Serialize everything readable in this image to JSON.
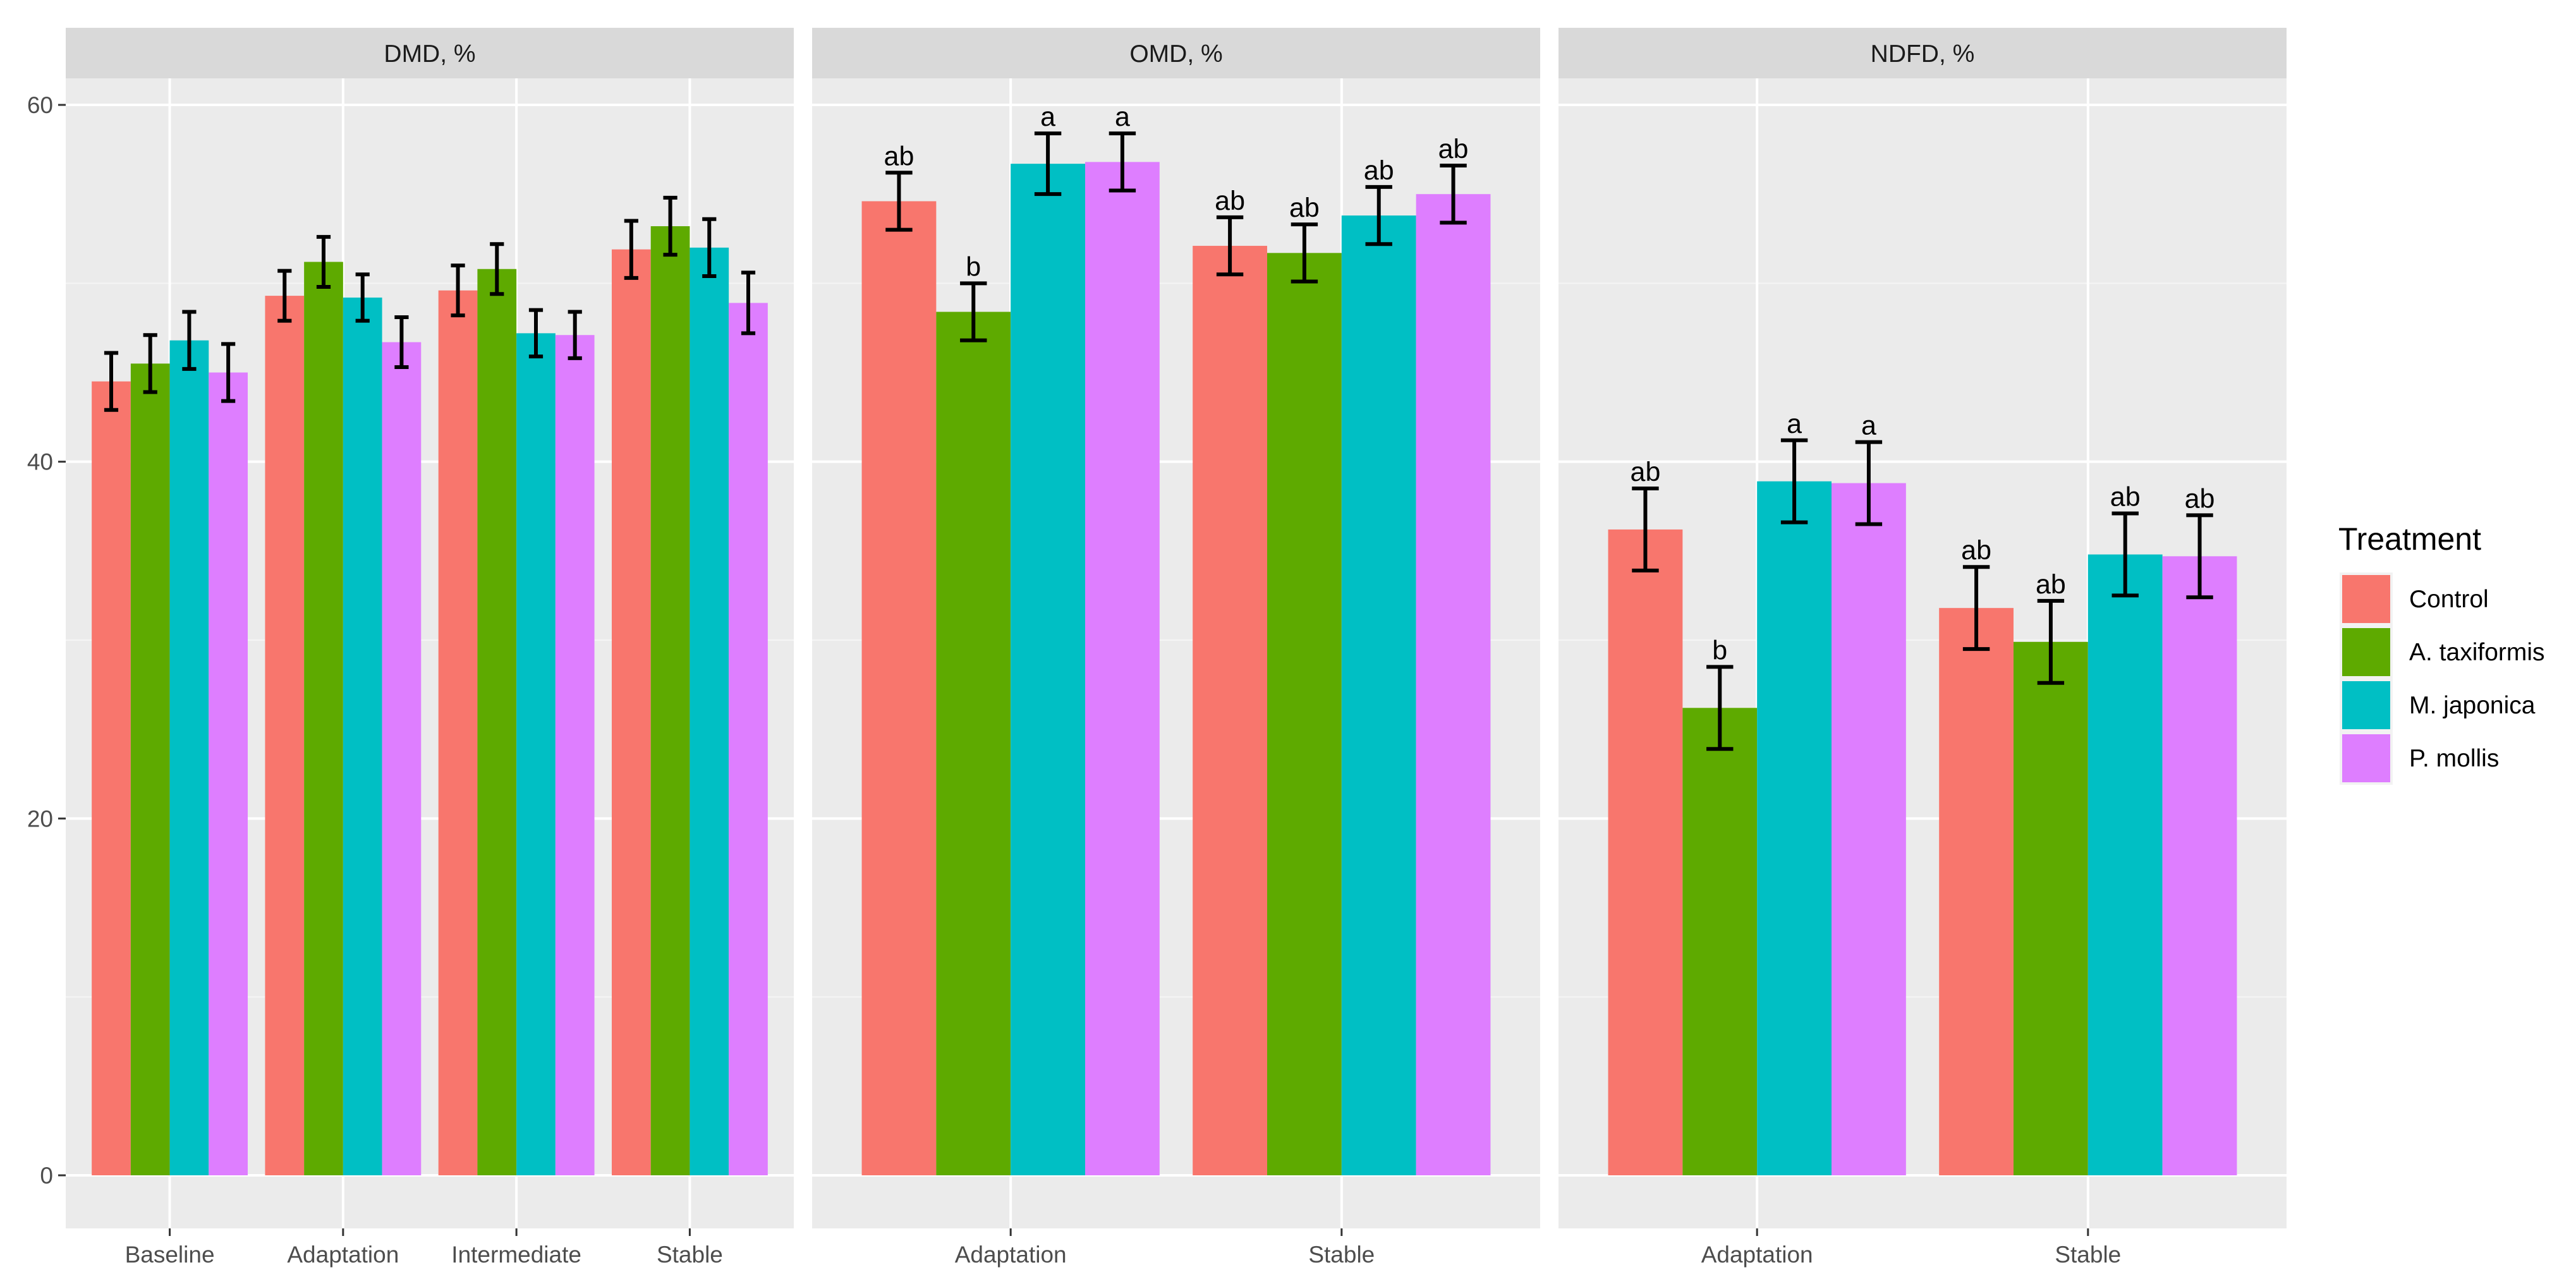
{
  "chart_data": [
    {
      "type": "bar",
      "title": "DMD, %",
      "categories": [
        "Baseline",
        "Adaptation",
        "Intermediate",
        "Stable"
      ],
      "ylim": [
        0,
        63
      ],
      "yticks": [
        0,
        20,
        40,
        60
      ],
      "grid": true,
      "series": [
        {
          "name": "Control",
          "values": [
            44.5,
            49.3,
            49.6,
            51.9
          ],
          "errors": [
            1.6,
            1.4,
            1.4,
            1.6
          ],
          "labels": [
            "",
            "",
            "",
            ""
          ]
        },
        {
          "name": "A. taxiformis",
          "values": [
            45.5,
            51.2,
            50.8,
            53.2
          ],
          "errors": [
            1.6,
            1.4,
            1.4,
            1.6
          ],
          "labels": [
            "",
            "",
            "",
            ""
          ]
        },
        {
          "name": "M. japonica",
          "values": [
            46.8,
            49.2,
            47.2,
            52.0
          ],
          "errors": [
            1.6,
            1.3,
            1.3,
            1.6
          ],
          "labels": [
            "",
            "",
            "",
            ""
          ]
        },
        {
          "name": "P. mollis",
          "values": [
            45.0,
            46.7,
            47.1,
            48.9
          ],
          "errors": [
            1.6,
            1.4,
            1.3,
            1.7
          ],
          "labels": [
            "",
            "",
            "",
            ""
          ]
        }
      ]
    },
    {
      "type": "bar",
      "title": "OMD, %",
      "categories": [
        "Adaptation",
        "Stable"
      ],
      "ylim": [
        0,
        63
      ],
      "yticks": [
        0,
        20,
        40,
        60
      ],
      "grid": true,
      "series": [
        {
          "name": "Control",
          "values": [
            54.6,
            52.1
          ],
          "errors": [
            1.6,
            1.6
          ],
          "labels": [
            "ab",
            "ab"
          ]
        },
        {
          "name": "A. taxiformis",
          "values": [
            48.4,
            51.7
          ],
          "errors": [
            1.6,
            1.6
          ],
          "labels": [
            "b",
            "ab"
          ]
        },
        {
          "name": "M. japonica",
          "values": [
            56.7,
            53.8
          ],
          "errors": [
            1.7,
            1.6
          ],
          "labels": [
            "a",
            "ab"
          ]
        },
        {
          "name": "P. mollis",
          "values": [
            56.8,
            55.0
          ],
          "errors": [
            1.6,
            1.6
          ],
          "labels": [
            "a",
            "ab"
          ]
        }
      ]
    },
    {
      "type": "bar",
      "title": "NDFD, %",
      "categories": [
        "Adaptation",
        "Stable"
      ],
      "ylim": [
        0,
        63
      ],
      "yticks": [
        0,
        20,
        40,
        60
      ],
      "grid": true,
      "series": [
        {
          "name": "Control",
          "values": [
            36.2,
            31.8
          ],
          "errors": [
            2.3,
            2.3
          ],
          "labels": [
            "ab",
            "ab"
          ]
        },
        {
          "name": "A. taxiformis",
          "values": [
            26.2,
            29.9
          ],
          "errors": [
            2.3,
            2.3
          ],
          "labels": [
            "b",
            "ab"
          ]
        },
        {
          "name": "M. japonica",
          "values": [
            38.9,
            34.8
          ],
          "errors": [
            2.3,
            2.3
          ],
          "labels": [
            "a",
            "ab"
          ]
        },
        {
          "name": "P. mollis",
          "values": [
            38.8,
            34.7
          ],
          "errors": [
            2.3,
            2.3
          ],
          "labels": [
            "a",
            "ab"
          ]
        }
      ]
    }
  ],
  "legend": {
    "title": "Treatment",
    "placement": "right",
    "items": [
      {
        "label": "Control",
        "color": "#F8766D"
      },
      {
        "label": "A. taxiformis",
        "color": "#5EAA00"
      },
      {
        "label": "M. japonica",
        "color": "#00BFC4"
      },
      {
        "label": "P. mollis",
        "color": "#DE7EFF"
      }
    ]
  }
}
